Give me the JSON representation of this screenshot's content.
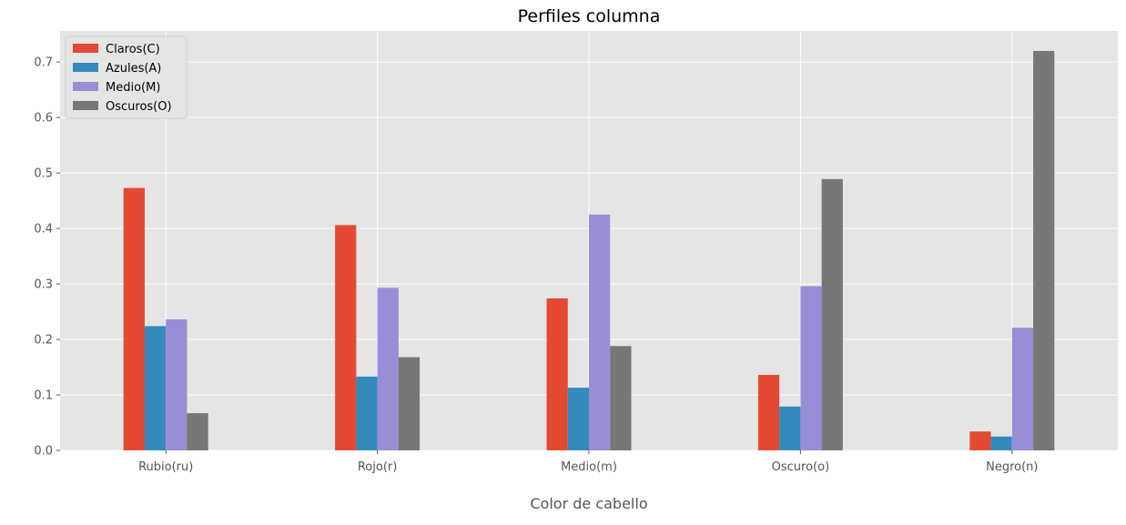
{
  "chart_data": {
    "type": "bar",
    "title": "Perfiles columna",
    "xlabel": "Color de cabello",
    "ylabel": "",
    "categories": [
      "Rubio(ru)",
      "Rojo(r)",
      "Medio(m)",
      "Oscuro(o)",
      "Negro(n)"
    ],
    "series": [
      {
        "name": "Claros(C)",
        "color": "#E24A33",
        "values": [
          0.473,
          0.406,
          0.274,
          0.136,
          0.034
        ]
      },
      {
        "name": "Azules(A)",
        "color": "#348ABD",
        "values": [
          0.224,
          0.133,
          0.113,
          0.079,
          0.025
        ]
      },
      {
        "name": "Medio(M)",
        "color": "#988ED5",
        "values": [
          0.236,
          0.293,
          0.425,
          0.296,
          0.221
        ]
      },
      {
        "name": "Oscuros(O)",
        "color": "#777777",
        "values": [
          0.067,
          0.168,
          0.188,
          0.489,
          0.72
        ]
      }
    ],
    "yticks": [
      "0.0",
      "0.1",
      "0.2",
      "0.3",
      "0.4",
      "0.5",
      "0.6",
      "0.7"
    ],
    "ylim": [
      0,
      0.756
    ],
    "grid": true,
    "legend_position": "top-left",
    "background_color": "#E5E5E5",
    "grid_color": "#FFFFFF"
  }
}
